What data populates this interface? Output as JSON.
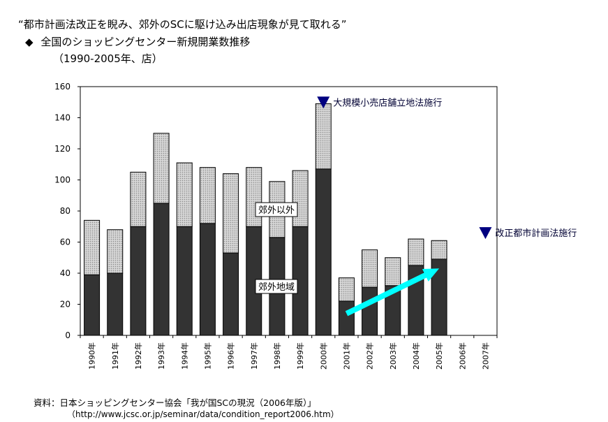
{
  "header": {
    "headline": "“都市計画法改正を睨み、郊外のSCに駆け込み出店現象が見て取れる”",
    "bullet": "◆",
    "subtitle": "全国のショッピングセンター新規開業数推移",
    "subtitle2": "（1990-2005年、店）"
  },
  "source": {
    "line1": "資料：日本ショッピングセンター協会「我が国SCの現況（2006年版）」",
    "line2": "（http://www.jcsc.or.jp/seminar/data/condition_report2006.htm）"
  },
  "colors": {
    "suburban": "#333333",
    "non_suburban": "#c8c8c8",
    "arrow": "#00ffff",
    "marker": "#000080"
  },
  "chart_data": {
    "type": "bar",
    "stacked": true,
    "categories": [
      "1990年",
      "1991年",
      "1992年",
      "1993年",
      "1994年",
      "1995年",
      "1996年",
      "1997年",
      "1998年",
      "1999年",
      "2000年",
      "2001年",
      "2002年",
      "2003年",
      "2004年",
      "2005年",
      "2006年",
      "2007年"
    ],
    "series": [
      {
        "name": "郊外地域",
        "values": [
          39,
          40,
          70,
          85,
          70,
          72,
          53,
          70,
          63,
          70,
          107,
          22,
          31,
          32,
          45,
          49,
          null,
          null
        ]
      },
      {
        "name": "郊外以外",
        "values": [
          35,
          28,
          35,
          45,
          41,
          36,
          51,
          38,
          36,
          36,
          42,
          15,
          24,
          18,
          17,
          12,
          null,
          null
        ]
      }
    ],
    "yticks": [
      0,
      20,
      40,
      60,
      80,
      100,
      120,
      140,
      160
    ],
    "ylim": [
      0,
      160
    ],
    "grid": false,
    "annotations": [
      {
        "text": "大規模小売店舗立地法施行",
        "category": "2000年",
        "value": 150
      },
      {
        "text": "改正都市計画法施行",
        "category": "2007年",
        "value": 66
      }
    ],
    "arrow": {
      "from_category": "2001年",
      "from_value": 14,
      "to_category": "2005年",
      "to_value": 43
    }
  }
}
